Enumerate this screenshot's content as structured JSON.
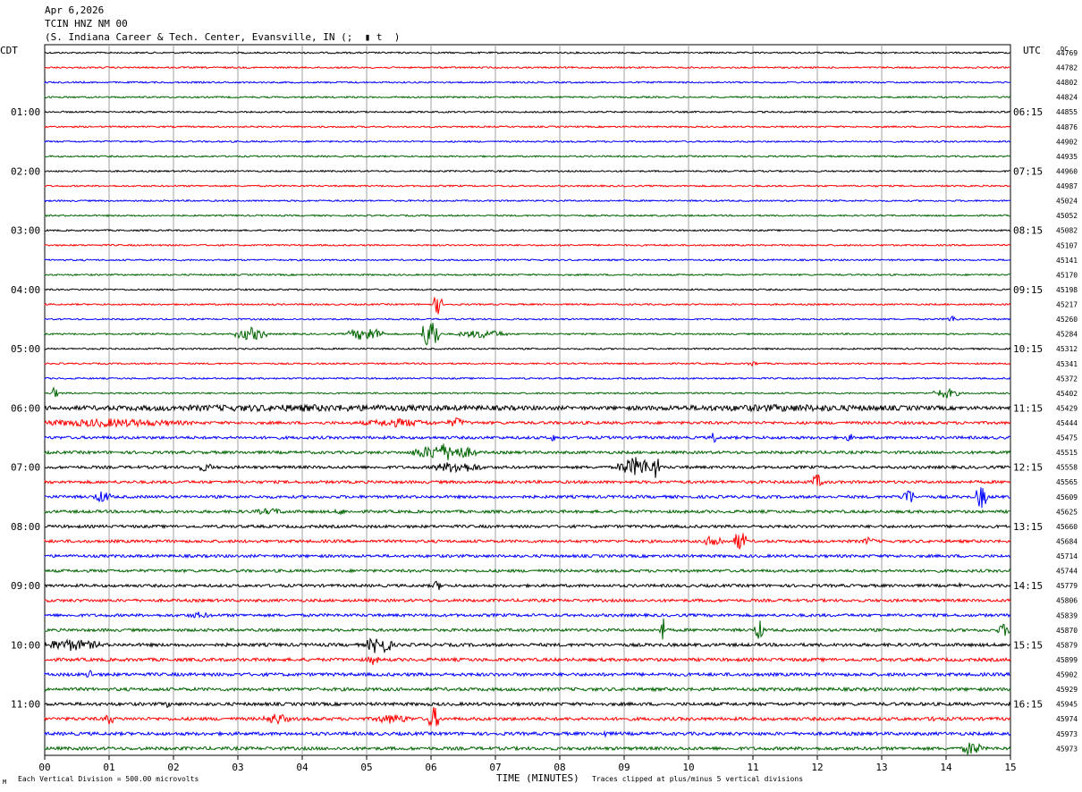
{
  "header": {
    "date": "Apr 6,2026",
    "station": "TCIN HNZ NM 00",
    "location": "(S. Indiana Career & Tech. Center, Evansville, IN (;  ▮ t  )"
  },
  "footer": {
    "scale_note": "Each Vertical Division =  500.00 microvolts",
    "clip_note": "Traces clipped at plus/minus 5 vertical divisions"
  },
  "colors": {
    "trace_cycle": [
      "#000000",
      "#ff0000",
      "#0000ff",
      "#006400"
    ],
    "grid": "#a0a0a0",
    "background": "#ffffff"
  },
  "chart_data": {
    "type": "line",
    "title": "TCIN HNZ NM 00",
    "xlabel": "TIME (MINUTES)",
    "xlim": [
      0,
      15
    ],
    "x_ticks": [
      "00",
      "01",
      "02",
      "03",
      "04",
      "05",
      "06",
      "07",
      "08",
      "09",
      "10",
      "11",
      "12",
      "13",
      "14",
      "15"
    ],
    "left_axis_label": "CDT",
    "right_axis_label": "UTC",
    "dc_label": "DC",
    "left_time_labels": [
      {
        "row": 4,
        "text": "01:00"
      },
      {
        "row": 8,
        "text": "02:00"
      },
      {
        "row": 12,
        "text": "03:00"
      },
      {
        "row": 16,
        "text": "04:00"
      },
      {
        "row": 20,
        "text": "05:00"
      },
      {
        "row": 24,
        "text": "06:00"
      },
      {
        "row": 28,
        "text": "07:00"
      },
      {
        "row": 32,
        "text": "08:00"
      },
      {
        "row": 36,
        "text": "09:00"
      },
      {
        "row": 40,
        "text": "10:00"
      },
      {
        "row": 44,
        "text": "11:00"
      }
    ],
    "right_time_labels": [
      {
        "row": 4,
        "text": "06:15"
      },
      {
        "row": 8,
        "text": "07:15"
      },
      {
        "row": 12,
        "text": "08:15"
      },
      {
        "row": 16,
        "text": "09:15"
      },
      {
        "row": 20,
        "text": "10:15"
      },
      {
        "row": 24,
        "text": "11:15"
      },
      {
        "row": 28,
        "text": "12:15"
      },
      {
        "row": 32,
        "text": "13:15"
      },
      {
        "row": 36,
        "text": "14:15"
      },
      {
        "row": 40,
        "text": "15:15"
      },
      {
        "row": 44,
        "text": "16:15"
      }
    ],
    "dc_values": [
      "44769",
      "44782",
      "44802",
      "44824",
      "44855",
      "44876",
      "44902",
      "44935",
      "44960",
      "44987",
      "45024",
      "45052",
      "45082",
      "45107",
      "45141",
      "45170",
      "45198",
      "45217",
      "45260",
      "45284",
      "45312",
      "45341",
      "45372",
      "45402",
      "45429",
      "45444",
      "45475",
      "45515",
      "45558",
      "45565",
      "45609",
      "45625",
      "45660",
      "45684",
      "45714",
      "45744",
      "45779",
      "45806",
      "45839",
      "45870",
      "45879",
      "45899",
      "45902",
      "45929",
      "45945",
      "45974",
      "45973",
      "45973"
    ],
    "trace_rows": 48,
    "events": [
      {
        "row": 17,
        "t": 6.1,
        "amp": 12,
        "w": 0.08
      },
      {
        "row": 18,
        "t": 14.1,
        "amp": 4,
        "w": 0.1
      },
      {
        "row": 19,
        "t": 3.2,
        "amp": 8,
        "w": 0.25
      },
      {
        "row": 19,
        "t": 5.0,
        "amp": 8,
        "w": 0.3
      },
      {
        "row": 19,
        "t": 6.0,
        "amp": 20,
        "w": 0.15
      },
      {
        "row": 19,
        "t": 6.8,
        "amp": 5,
        "w": 0.4
      },
      {
        "row": 21,
        "t": 11.0,
        "amp": 3,
        "w": 0.1
      },
      {
        "row": 23,
        "t": 0.15,
        "amp": 8,
        "w": 0.05
      },
      {
        "row": 23,
        "t": 14.0,
        "amp": 6,
        "w": 0.2
      },
      {
        "row": 24,
        "t": 4.0,
        "amp": 4,
        "w": 5.5
      },
      {
        "row": 24,
        "t": 11.5,
        "amp": 4,
        "w": 3.5
      },
      {
        "row": 25,
        "t": 1.0,
        "amp": 5,
        "w": 1.3
      },
      {
        "row": 25,
        "t": 5.5,
        "amp": 5,
        "w": 0.6
      },
      {
        "row": 25,
        "t": 6.4,
        "amp": 6,
        "w": 0.15
      },
      {
        "row": 26,
        "t": 7.9,
        "amp": 5,
        "w": 0.05
      },
      {
        "row": 26,
        "t": 10.4,
        "amp": 12,
        "w": 0.03
      },
      {
        "row": 26,
        "t": 12.5,
        "amp": 6,
        "w": 0.05
      },
      {
        "row": 27,
        "t": 6.2,
        "amp": 10,
        "w": 0.5
      },
      {
        "row": 28,
        "t": 2.5,
        "amp": 5,
        "w": 0.15
      },
      {
        "row": 28,
        "t": 6.4,
        "amp": 7,
        "w": 0.4
      },
      {
        "row": 28,
        "t": 9.2,
        "amp": 12,
        "w": 0.3
      },
      {
        "row": 28,
        "t": 9.5,
        "amp": 18,
        "w": 0.05
      },
      {
        "row": 29,
        "t": 12.0,
        "amp": 9,
        "w": 0.1
      },
      {
        "row": 30,
        "t": 0.9,
        "amp": 7,
        "w": 0.15
      },
      {
        "row": 30,
        "t": 13.4,
        "amp": 12,
        "w": 0.1
      },
      {
        "row": 30,
        "t": 14.55,
        "amp": 14,
        "w": 0.1
      },
      {
        "row": 31,
        "t": 3.5,
        "amp": 4,
        "w": 0.3
      },
      {
        "row": 31,
        "t": 4.6,
        "amp": 4,
        "w": 0.1
      },
      {
        "row": 33,
        "t": 10.4,
        "amp": 8,
        "w": 0.15
      },
      {
        "row": 33,
        "t": 10.8,
        "amp": 13,
        "w": 0.1
      },
      {
        "row": 33,
        "t": 12.8,
        "amp": 5,
        "w": 0.1
      },
      {
        "row": 36,
        "t": 6.1,
        "amp": 6,
        "w": 0.1
      },
      {
        "row": 36,
        "t": 14.2,
        "amp": 4,
        "w": 0.05
      },
      {
        "row": 38,
        "t": 2.4,
        "amp": 4,
        "w": 0.2
      },
      {
        "row": 39,
        "t": 9.6,
        "amp": 16,
        "w": 0.05
      },
      {
        "row": 39,
        "t": 11.1,
        "amp": 12,
        "w": 0.08
      },
      {
        "row": 39,
        "t": 14.9,
        "amp": 8,
        "w": 0.1
      },
      {
        "row": 40,
        "t": 0.4,
        "amp": 7,
        "w": 0.5
      },
      {
        "row": 40,
        "t": 5.2,
        "amp": 12,
        "w": 0.2
      },
      {
        "row": 41,
        "t": 5.1,
        "amp": 6,
        "w": 0.1
      },
      {
        "row": 42,
        "t": 0.7,
        "amp": 8,
        "w": 0.05
      },
      {
        "row": 44,
        "t": 1.9,
        "amp": 4,
        "w": 0.1
      },
      {
        "row": 45,
        "t": 1.0,
        "amp": 8,
        "w": 0.08
      },
      {
        "row": 45,
        "t": 3.6,
        "amp": 7,
        "w": 0.2
      },
      {
        "row": 45,
        "t": 5.4,
        "amp": 6,
        "w": 0.3
      },
      {
        "row": 45,
        "t": 6.05,
        "amp": 14,
        "w": 0.1
      },
      {
        "row": 45,
        "t": 13.8,
        "amp": 8,
        "w": 0.03
      },
      {
        "row": 46,
        "t": 8.7,
        "amp": 5,
        "w": 0.05
      },
      {
        "row": 47,
        "t": 14.4,
        "amp": 9,
        "w": 0.15
      }
    ]
  }
}
